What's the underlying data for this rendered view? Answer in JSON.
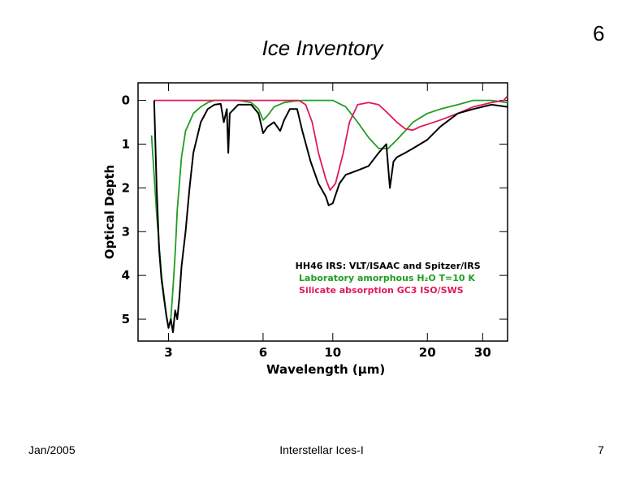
{
  "slide": {
    "title": "Ice Inventory",
    "number_top": "6",
    "footer_left": "Jan/2005",
    "footer_center": "Interstellar Ices-I",
    "footer_right": "7"
  },
  "colors": {
    "observed": "#000000",
    "h2o": "#1f9e22",
    "silicate": "#e0195a"
  },
  "chart_data": {
    "type": "line",
    "title": "",
    "xlabel": "Wavelength (μm)",
    "ylabel": "Optical Depth",
    "xscale": "log",
    "xlim": [
      2.4,
      36
    ],
    "ylim": [
      5.5,
      -0.4
    ],
    "y_inverted": true,
    "x_ticks": [
      3,
      6,
      10,
      20,
      30
    ],
    "x_tick_labels": [
      "3",
      "6",
      "10",
      "20",
      "30"
    ],
    "y_ticks": [
      0,
      1,
      2,
      3,
      4,
      5
    ],
    "y_tick_labels": [
      "0",
      "1",
      "2",
      "3",
      "4",
      "5"
    ],
    "legend": [
      {
        "series": "observed",
        "text": "HH46 IRS: VLT/ISAAC and Spitzer/IRS"
      },
      {
        "series": "h2o",
        "text": "Laboratory amorphous H₂O T=10 K"
      },
      {
        "series": "silicate",
        "text": "Silicate absorption GC3 ISO/SWS"
      }
    ],
    "series": [
      {
        "name": "observed",
        "x": [
          2.7,
          2.75,
          2.8,
          2.85,
          2.9,
          2.95,
          3.0,
          3.05,
          3.1,
          3.15,
          3.2,
          3.25,
          3.3,
          3.35,
          3.4,
          3.5,
          3.6,
          3.8,
          4.0,
          4.2,
          4.4,
          4.5,
          4.6,
          4.65,
          4.7,
          5.0,
          5.5,
          5.8,
          6.0,
          6.2,
          6.5,
          6.8,
          7.0,
          7.3,
          7.7,
          8.0,
          8.5,
          9.0,
          9.5,
          9.7,
          10.0,
          10.5,
          11.0,
          12.0,
          13.0,
          14.0,
          14.8,
          15.2,
          15.6,
          16.0,
          17.0,
          18.0,
          20.0,
          22.0,
          25.0,
          28.0,
          32.0,
          36.0
        ],
        "y": [
          0.0,
          2.0,
          3.4,
          4.1,
          4.5,
          4.9,
          5.2,
          5.0,
          5.3,
          4.8,
          5.0,
          4.5,
          3.8,
          3.4,
          3.0,
          2.0,
          1.2,
          0.5,
          0.2,
          0.1,
          0.08,
          0.5,
          0.2,
          1.2,
          0.3,
          0.1,
          0.1,
          0.3,
          0.75,
          0.6,
          0.5,
          0.7,
          0.45,
          0.2,
          0.2,
          0.7,
          1.4,
          1.9,
          2.2,
          2.4,
          2.35,
          1.9,
          1.7,
          1.6,
          1.5,
          1.2,
          1.0,
          2.0,
          1.4,
          1.3,
          1.2,
          1.1,
          0.9,
          0.6,
          0.3,
          0.2,
          0.1,
          0.15
        ]
      },
      {
        "name": "h2o",
        "x": [
          2.65,
          2.75,
          2.85,
          2.95,
          3.0,
          3.05,
          3.1,
          3.15,
          3.2,
          3.3,
          3.4,
          3.6,
          3.8,
          4.0,
          4.2,
          4.5,
          5.0,
          5.5,
          5.8,
          6.0,
          6.2,
          6.5,
          7.0,
          7.5,
          8.0,
          9.0,
          10.0,
          11.0,
          12.0,
          13.0,
          14.0,
          15.0,
          16.0,
          17.0,
          18.0,
          20.0,
          22.0,
          25.0,
          28.0,
          32.0,
          36.0
        ],
        "y": [
          0.8,
          2.6,
          4.0,
          4.9,
          5.2,
          5.0,
          4.3,
          3.5,
          2.5,
          1.3,
          0.7,
          0.3,
          0.15,
          0.05,
          0.0,
          0.0,
          0.0,
          0.05,
          0.2,
          0.45,
          0.35,
          0.15,
          0.05,
          0.02,
          0.0,
          0.0,
          0.0,
          0.15,
          0.5,
          0.85,
          1.1,
          1.1,
          0.9,
          0.7,
          0.5,
          0.3,
          0.2,
          0.1,
          0.0,
          0.0,
          0.05
        ]
      },
      {
        "name": "silicate",
        "x": [
          2.7,
          3.0,
          4.0,
          5.0,
          6.0,
          7.0,
          7.8,
          8.2,
          8.6,
          9.0,
          9.5,
          9.8,
          10.2,
          10.8,
          11.3,
          12.0,
          13.0,
          14.0,
          15.0,
          16.0,
          17.0,
          18.0,
          19.0,
          20.0,
          22.0,
          25.0,
          28.0,
          32.0,
          35.0,
          36.0
        ],
        "y": [
          0.0,
          0.0,
          0.0,
          0.0,
          0.0,
          0.0,
          0.0,
          0.1,
          0.5,
          1.2,
          1.8,
          2.05,
          1.9,
          1.2,
          0.5,
          0.1,
          0.05,
          0.1,
          0.3,
          0.5,
          0.65,
          0.68,
          0.6,
          0.55,
          0.45,
          0.3,
          0.15,
          0.05,
          0.0,
          -0.1
        ]
      }
    ]
  }
}
